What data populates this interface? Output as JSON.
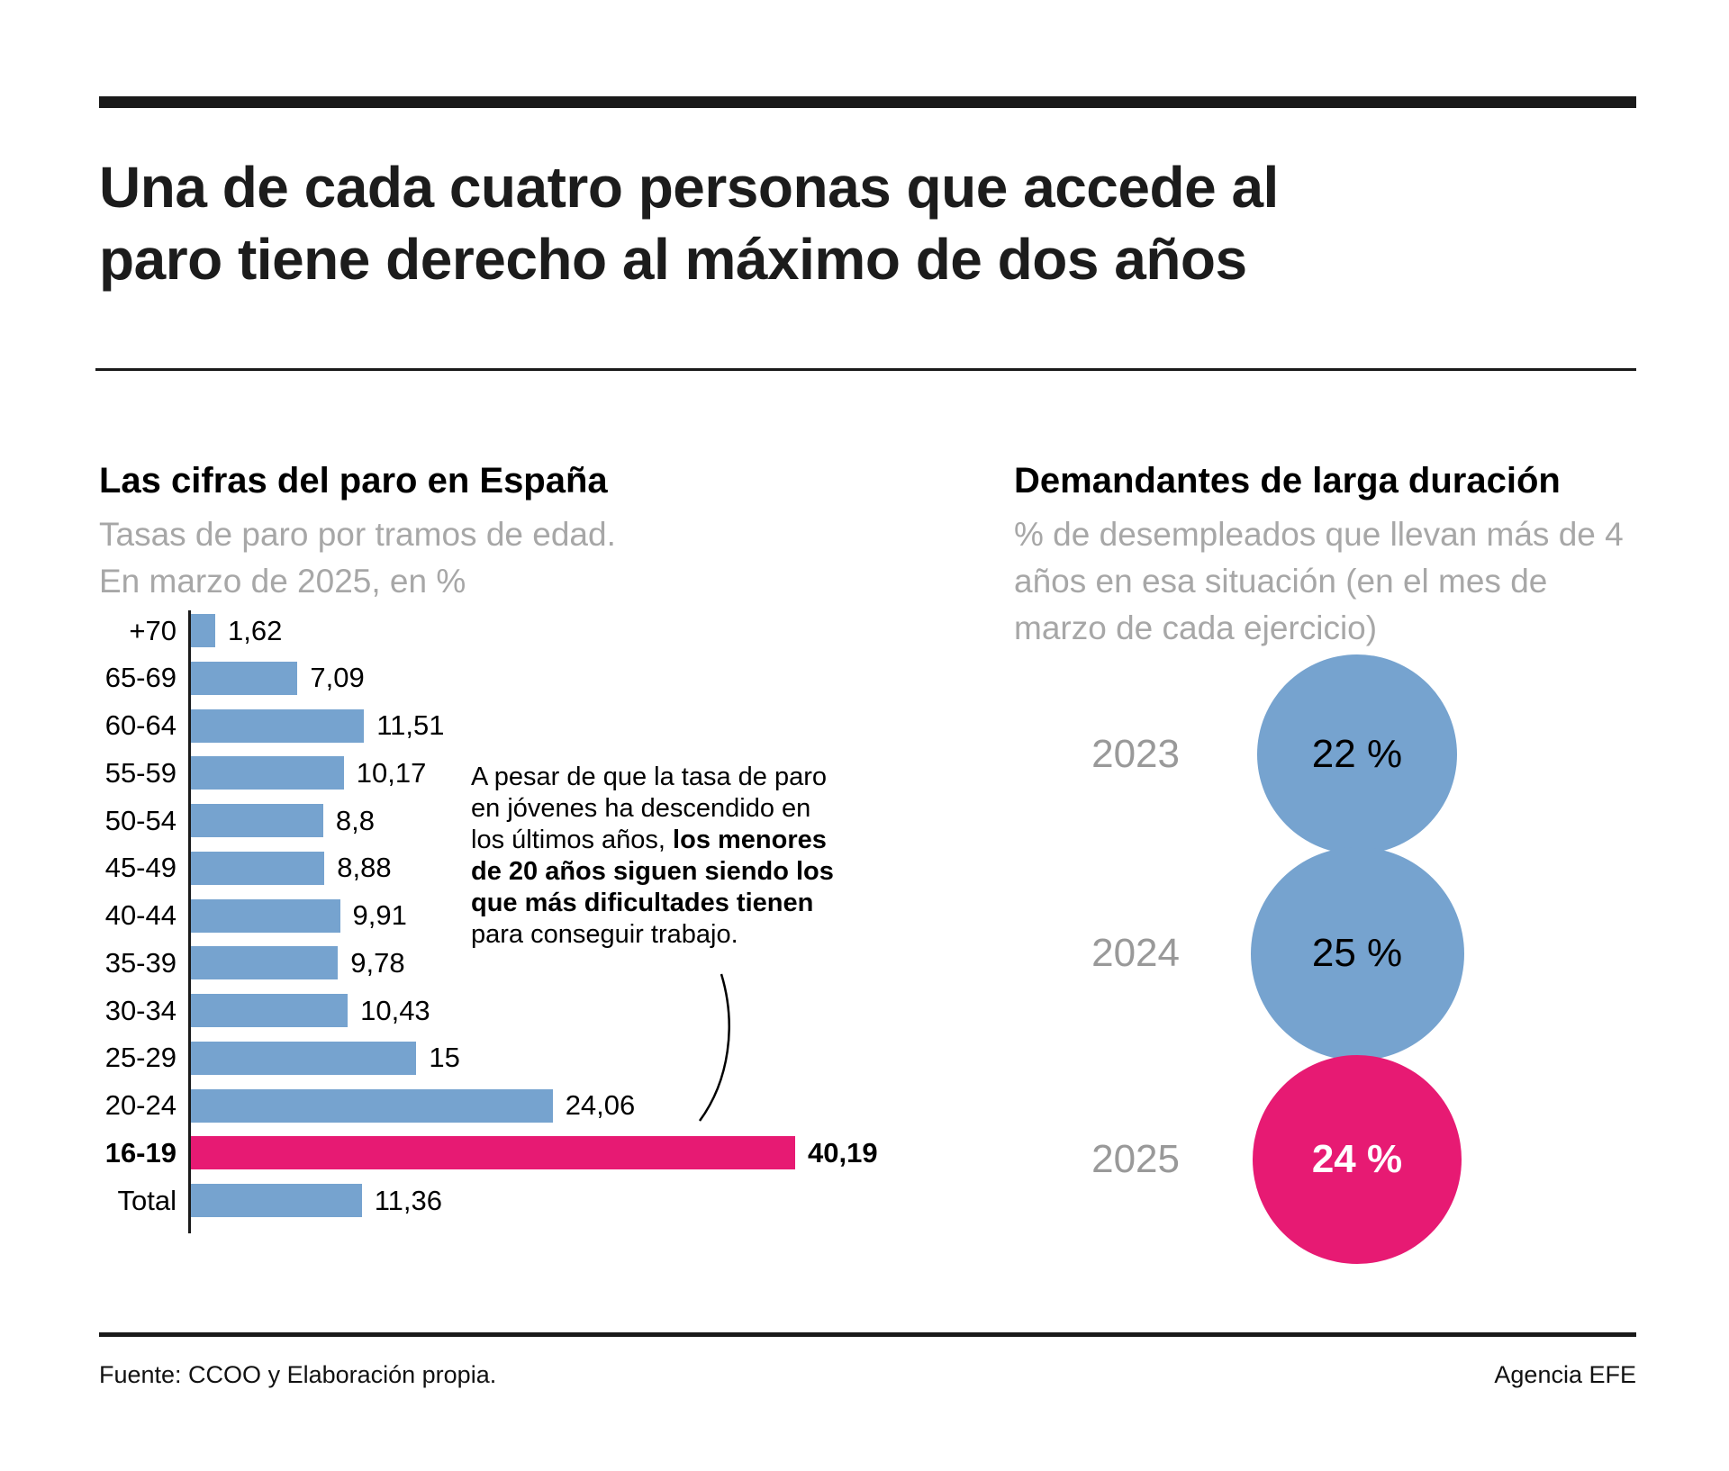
{
  "page": {
    "title_lines": [
      "Una de cada cuatro personas que accede al",
      "paro tiene derecho al máximo de dos años"
    ],
    "footer": {
      "source": "Fuente: CCOO y Elaboración propia.",
      "credit": "Agencia EFE"
    }
  },
  "colors": {
    "blue": "#76a3cf",
    "pink": "#e71a73",
    "dark": "#1a1a1a",
    "subtitle_gray": "#a7a7a7",
    "year_gray": "#999999"
  },
  "chart_data": [
    {
      "type": "bar",
      "orientation": "horizontal",
      "title": "Las cifras del paro en España",
      "subtitle_lines": [
        "Tasas de paro por tramos de edad.",
        "En marzo de 2025, en %"
      ],
      "unit": "%",
      "categories": [
        "+70",
        "65-69",
        "60-64",
        "55-59",
        "50-54",
        "45-49",
        "40-44",
        "35-39",
        "30-34",
        "25-29",
        "20-24",
        "16-19",
        "Total"
      ],
      "values": [
        1.62,
        7.09,
        11.51,
        10.17,
        8.8,
        8.88,
        9.91,
        9.78,
        10.43,
        15,
        24.06,
        40.19,
        11.36
      ],
      "value_labels": [
        "1,62",
        "7,09",
        "11,51",
        "10,17",
        "8,8",
        "8,88",
        "9,91",
        "9,78",
        "10,43",
        "15",
        "24,06",
        "40,19",
        "11,36"
      ],
      "highlight_category": "16-19",
      "xlim": [
        0,
        42
      ],
      "grid": false,
      "annotation_lines": [
        [
          {
            "t": "A pesar de que la tasa de paro",
            "b": false
          }
        ],
        [
          {
            "t": "en jóvenes ha descendido en",
            "b": false
          }
        ],
        [
          {
            "t": "los últimos años, ",
            "b": false
          },
          {
            "t": "los menores",
            "b": true
          }
        ],
        [
          {
            "t": "de 20 años siguen siendo los",
            "b": true
          }
        ],
        [
          {
            "t": "que más dificultades tienen",
            "b": true
          }
        ],
        [
          {
            "t": "para conseguir trabajo.",
            "b": false
          }
        ]
      ]
    },
    {
      "type": "bubble",
      "title": "Demandantes de larga duración",
      "subtitle_lines": [
        "% de desempleados que llevan más de 4",
        "años en esa situación (en el mes de",
        "marzo de cada ejercicio)"
      ],
      "categories": [
        "2023",
        "2024",
        "2025"
      ],
      "values": [
        22,
        25,
        24
      ],
      "value_labels": [
        "22 %",
        "25 %",
        "24 %"
      ],
      "highlight_category": "2025",
      "legend": "none"
    }
  ]
}
